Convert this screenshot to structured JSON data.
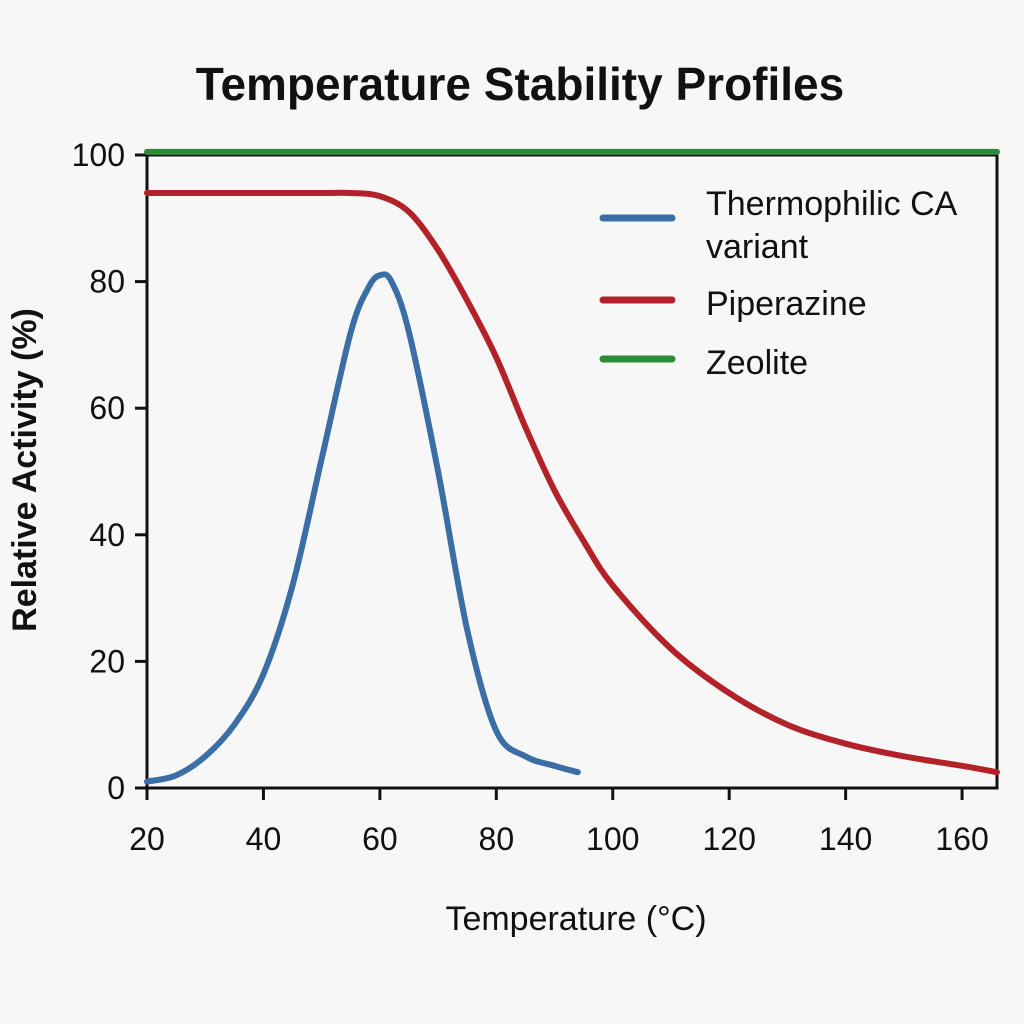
{
  "chart_data": {
    "type": "line",
    "title": "Temperature Stability Profiles",
    "xlabel": "Temperature (°C)",
    "ylabel": "Relative Activity (%)",
    "xlim": [
      20,
      166
    ],
    "ylim": [
      0,
      100
    ],
    "xticks": [
      20,
      40,
      60,
      80,
      100,
      120,
      140,
      160
    ],
    "yticks": [
      0,
      20,
      40,
      60,
      80,
      100
    ],
    "grid": false,
    "legend_position": "top-right",
    "series": [
      {
        "name": "Thermophilic CA variant",
        "color": "#3a6ea5",
        "x": [
          20,
          25,
          30,
          35,
          40,
          45,
          50,
          55,
          58,
          60,
          62,
          65,
          70,
          75,
          80,
          85,
          90,
          94
        ],
        "y": [
          1,
          2,
          5,
          10,
          18,
          32,
          52,
          72,
          79,
          81,
          80,
          72,
          50,
          25,
          9,
          5,
          3.5,
          2.5
        ]
      },
      {
        "name": "Piperazine",
        "color": "#b22228",
        "x": [
          20,
          30,
          40,
          50,
          55,
          60,
          65,
          70,
          75,
          80,
          85,
          90,
          95,
          100,
          110,
          120,
          130,
          140,
          150,
          160,
          166
        ],
        "y": [
          94,
          94,
          94,
          94,
          94,
          93.5,
          91,
          85,
          77,
          68,
          57,
          47,
          39,
          32,
          22,
          15,
          10,
          7,
          5,
          3.5,
          2.5
        ]
      },
      {
        "name": "Zeolite",
        "color": "#2e8b3a",
        "x": [
          20,
          166
        ],
        "y": [
          100.5,
          100.5
        ]
      }
    ]
  }
}
